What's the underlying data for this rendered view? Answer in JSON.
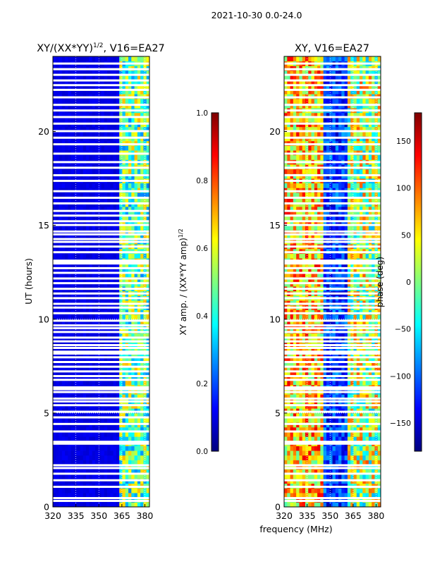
{
  "suptitle": "2021-10-30 0.0-24.0",
  "colors": {
    "jet": [
      "#00007f",
      "#0000ff",
      "#007fff",
      "#00ffff",
      "#7fff7f",
      "#ffff00",
      "#ff7f00",
      "#ff0000",
      "#7f0000"
    ],
    "frame": "#000000",
    "grid": "#ffffff"
  },
  "chart_data": [
    {
      "type": "heatmap",
      "title_main": "XY/(XX*YY)",
      "title_sup": "1/2",
      "title_rest": ", V16=EA27",
      "xlabel": "",
      "ylabel": "UT (hours)",
      "xlim": [
        320,
        383
      ],
      "ylim": [
        0,
        24
      ],
      "xticks": [
        320,
        335,
        350,
        365,
        380
      ],
      "yticks": [
        0,
        5,
        10,
        15,
        20
      ],
      "grid": true,
      "colorbar": {
        "label_main": "XY amp. / (XX*YY amp)",
        "label_sup": "1/2",
        "range": [
          0.0,
          1.0
        ],
        "ticks": [
          "0.0",
          "0.2",
          "0.4",
          "0.6",
          "0.8",
          "1.0"
        ]
      }
    },
    {
      "type": "heatmap",
      "title_main": "XY, V16=EA27",
      "xlabel": "frequency (MHz)",
      "ylabel": "",
      "xlim": [
        320,
        383
      ],
      "ylim": [
        0,
        24
      ],
      "xticks": [
        320,
        335,
        350,
        365,
        380
      ],
      "yticks": [
        0,
        5,
        10,
        15,
        20
      ],
      "grid": true,
      "colorbar": {
        "label_main": "phase (deg)",
        "range": [
          -180,
          180
        ],
        "ticks": [
          "150",
          "100",
          "50",
          "0",
          "−50",
          "−100",
          "−150"
        ]
      }
    }
  ],
  "flagged_ut_hours": [
    0.3,
    0.45,
    1.05,
    1.4,
    1.75,
    2.05,
    2.2,
    3.35,
    3.45,
    4.0,
    4.4,
    4.75,
    5.05,
    5.4,
    5.6,
    5.75,
    6.1,
    6.25,
    6.35,
    6.75,
    6.95,
    7.2,
    7.45,
    7.7,
    7.95,
    8.15,
    8.25,
    8.45,
    8.6,
    8.8,
    9.0,
    9.3,
    9.5,
    9.65,
    9.9,
    10.3,
    10.6,
    10.8,
    11.1,
    11.35,
    11.6,
    11.9,
    12.15,
    12.45,
    12.7,
    12.95,
    13.0,
    13.1,
    13.55,
    13.85,
    14.1,
    14.25,
    14.5,
    14.65,
    15.0,
    15.2,
    15.5,
    15.75,
    16.15,
    16.45,
    16.8,
    17.35,
    17.65,
    18.05,
    18.35,
    18.8,
    19.3,
    19.65,
    20.0,
    20.4,
    20.75,
    21.1,
    21.4,
    21.8,
    22.2,
    22.45,
    22.7,
    23.0,
    23.3,
    23.6
  ]
}
